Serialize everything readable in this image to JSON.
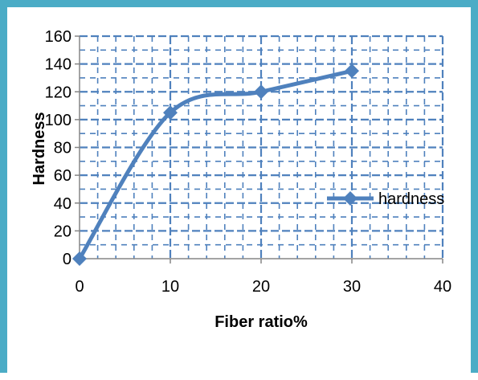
{
  "chart_data": {
    "type": "line",
    "title": "",
    "xlabel": "Fiber ratio%",
    "ylabel": "Hardness",
    "xlim": [
      0,
      40
    ],
    "ylim": [
      0,
      160
    ],
    "x_ticks": [
      0,
      10,
      20,
      30,
      40
    ],
    "y_ticks": [
      0,
      20,
      40,
      60,
      80,
      100,
      120,
      140,
      160
    ],
    "x_tick_labels": [
      "0",
      "10",
      "20",
      "30",
      "40"
    ],
    "y_tick_labels": [
      "0",
      "20",
      "40",
      "60",
      "80",
      "100",
      "120",
      "140",
      "160"
    ],
    "grid": true,
    "smooth": true,
    "legend_position": "right",
    "series": [
      {
        "name": "hardness",
        "color": "#4F81BD",
        "marker": "diamond",
        "x": [
          0,
          10,
          20,
          30
        ],
        "y": [
          0,
          105,
          120,
          135
        ]
      }
    ]
  },
  "frame_color": "#4BACC6",
  "grid_color": "#4F81BD"
}
